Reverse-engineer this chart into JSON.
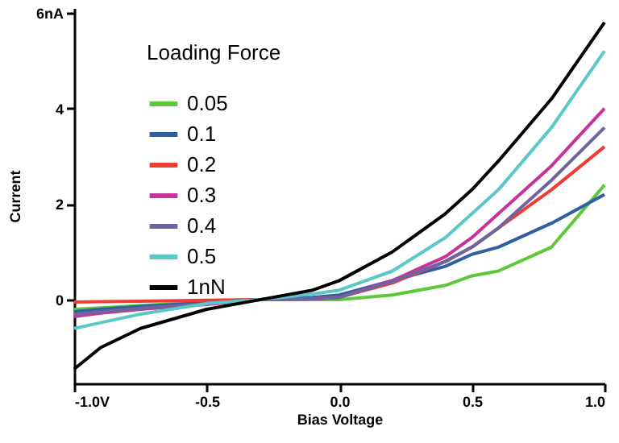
{
  "chart_data": {
    "type": "line",
    "xlabel": "Bias Voltage",
    "ylabel": "Current",
    "legend_title": "Loading Force",
    "x": [
      -1.0,
      -0.9,
      -0.75,
      -0.5,
      -0.3,
      -0.1,
      0.0,
      0.2,
      0.4,
      0.5,
      0.6,
      0.8,
      1.0
    ],
    "series": [
      {
        "name": "0.05",
        "color": "#5cc83a",
        "values": [
          -0.2,
          -0.17,
          -0.12,
          -0.05,
          0,
          0,
          0,
          0.1,
          0.3,
          0.5,
          0.6,
          1.1,
          2.4
        ]
      },
      {
        "name": "0.1",
        "color": "#2f5fa0",
        "values": [
          -0.25,
          -0.2,
          -0.14,
          -0.06,
          0,
          0.05,
          0.1,
          0.4,
          0.7,
          0.95,
          1.1,
          1.6,
          2.2
        ]
      },
      {
        "name": "0.2",
        "color": "#f03c32",
        "values": [
          -0.05,
          -0.04,
          -0.03,
          -0.01,
          0,
          0.02,
          0.05,
          0.35,
          0.8,
          1.1,
          1.5,
          2.3,
          3.2
        ]
      },
      {
        "name": "0.3",
        "color": "#c8329b",
        "values": [
          -0.35,
          -0.28,
          -0.2,
          -0.1,
          0,
          0.02,
          0.05,
          0.4,
          0.9,
          1.3,
          1.8,
          2.8,
          4.0
        ]
      },
      {
        "name": "0.4",
        "color": "#6e64a0",
        "values": [
          -0.3,
          -0.25,
          -0.18,
          -0.08,
          0,
          0.02,
          0.05,
          0.38,
          0.8,
          1.1,
          1.5,
          2.5,
          3.6
        ]
      },
      {
        "name": "0.5",
        "color": "#5ac8c8",
        "values": [
          -0.6,
          -0.48,
          -0.3,
          -0.08,
          0,
          0.12,
          0.2,
          0.6,
          1.3,
          1.8,
          2.3,
          3.6,
          5.2
        ]
      },
      {
        "name": "1nN",
        "color": "#000000",
        "values": [
          -1.45,
          -1.0,
          -0.6,
          -0.2,
          0,
          0.2,
          0.4,
          1.0,
          1.8,
          2.3,
          2.9,
          4.2,
          5.8
        ]
      }
    ],
    "xlim": [
      -1.0,
      1.0
    ],
    "xticks": [
      {
        "value": -1,
        "label": "-1.0V"
      },
      -0.5,
      {
        "value": 0,
        "label": "0.0"
      },
      0.5,
      {
        "value": 1,
        "label": "1.0"
      }
    ],
    "ylim": [
      -1.75,
      6.1
    ],
    "yticks": [
      0,
      2,
      4,
      {
        "value": 6,
        "label": "6nA"
      }
    ],
    "grid": false,
    "legend": "top left",
    "marker": "none",
    "line_style": "solid"
  }
}
